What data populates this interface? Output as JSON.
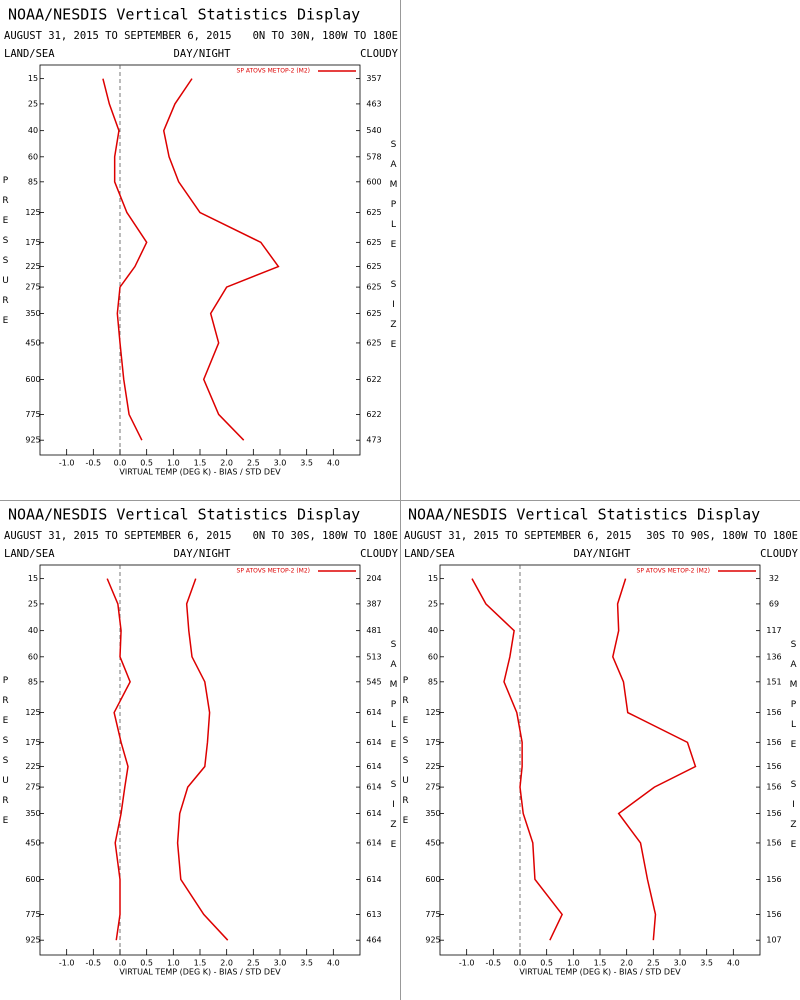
{
  "chart_data": [
    {
      "type": "line",
      "title": "NOAA/NESDIS Vertical Statistics Display",
      "subtitle": "AUGUST 31, 2015 TO SEPTEMBER 6, 2015",
      "region": "0N TO 30N, 180W TO 180E",
      "left_label": "LAND/SEA",
      "center_label": "DAY/NIGHT",
      "right_label": "CLOUDY",
      "xlabel": "VIRTUAL TEMP (DEG K) - BIAS / STD DEV",
      "ylabel": "PRESSURE",
      "y2label": "SAMPLE SIZE",
      "y": [
        15,
        25,
        40,
        60,
        85,
        125,
        175,
        225,
        275,
        350,
        450,
        600,
        775,
        925
      ],
      "sample_size": [
        357,
        463,
        540,
        578,
        600,
        625,
        625,
        625,
        625,
        625,
        625,
        622,
        622,
        473
      ],
      "series": [
        {
          "name": "SP ATOVS METOP-2 (M2)",
          "color": "#dd0000",
          "values": [
            -0.32,
            -0.2,
            -0.02,
            -0.1,
            -0.1,
            0.13,
            0.5,
            0.28,
            0.0,
            -0.05,
            0.0,
            0.07,
            0.17,
            0.41
          ]
        },
        {
          "color": "#dd0000",
          "values": [
            1.35,
            1.03,
            0.82,
            0.92,
            1.1,
            1.5,
            2.64,
            2.97,
            2.0,
            1.7,
            1.85,
            1.57,
            1.85,
            2.32
          ]
        }
      ],
      "xlim": [
        -1.5,
        4.5
      ],
      "xticks": [
        {
          "value": -1,
          "label": "-1.0"
        },
        {
          "value": -0.5,
          "label": "-0.5"
        },
        {
          "value": 0,
          "label": "0.0"
        },
        {
          "value": 0.5,
          "label": "0.5"
        },
        {
          "value": 1,
          "label": "1.0"
        },
        {
          "value": 1.5,
          "label": "1.5"
        },
        {
          "value": 2,
          "label": "2.0"
        },
        {
          "value": 2.5,
          "label": "2.5"
        },
        {
          "value": 3,
          "label": "3.0"
        },
        {
          "value": 3.5,
          "label": "3.5"
        },
        {
          "value": 4,
          "label": "4.0"
        }
      ],
      "ylim": [
        11,
        1020
      ],
      "y_power": 0.286,
      "y_inverted": true,
      "yticks": [
        15,
        25,
        40,
        60,
        85,
        125,
        175,
        225,
        275,
        350,
        450,
        600,
        775,
        925
      ]
    },
    {
      "type": "line",
      "title": "NOAA/NESDIS Vertical Statistics Display",
      "subtitle": "AUGUST 31, 2015 TO SEPTEMBER 6, 2015",
      "region": "0N TO 30S, 180W TO 180E",
      "left_label": "LAND/SEA",
      "center_label": "DAY/NIGHT",
      "right_label": "CLOUDY",
      "xlabel": "VIRTUAL TEMP (DEG K) - BIAS / STD DEV",
      "ylabel": "PRESSURE",
      "y2label": "SAMPLE SIZE",
      "y": [
        15,
        25,
        40,
        60,
        85,
        125,
        175,
        225,
        275,
        350,
        450,
        600,
        775,
        925
      ],
      "sample_size": [
        204,
        387,
        481,
        513,
        545,
        614,
        614,
        614,
        614,
        614,
        614,
        614,
        613,
        464
      ],
      "series": [
        {
          "name": "SP ATOVS METOP-2 (M2)",
          "color": "#dd0000",
          "values": [
            -0.24,
            -0.04,
            0.02,
            0.0,
            0.19,
            -0.11,
            0.02,
            0.15,
            0.09,
            0.02,
            -0.09,
            0.0,
            0.0,
            -0.07
          ]
        },
        {
          "color": "#dd0000",
          "values": [
            1.42,
            1.25,
            1.29,
            1.35,
            1.59,
            1.68,
            1.64,
            1.59,
            1.27,
            1.12,
            1.08,
            1.14,
            1.57,
            2.02
          ]
        }
      ],
      "xlim": [
        -1.5,
        4.5
      ],
      "xticks": [
        {
          "value": -1,
          "label": "-1.0"
        },
        {
          "value": -0.5,
          "label": "-0.5"
        },
        {
          "value": 0,
          "label": "0.0"
        },
        {
          "value": 0.5,
          "label": "0.5"
        },
        {
          "value": 1,
          "label": "1.0"
        },
        {
          "value": 1.5,
          "label": "1.5"
        },
        {
          "value": 2,
          "label": "2.0"
        },
        {
          "value": 2.5,
          "label": "2.5"
        },
        {
          "value": 3,
          "label": "3.0"
        },
        {
          "value": 3.5,
          "label": "3.5"
        },
        {
          "value": 4,
          "label": "4.0"
        }
      ],
      "ylim": [
        11,
        1020
      ],
      "y_power": 0.286,
      "y_inverted": true,
      "yticks": [
        15,
        25,
        40,
        60,
        85,
        125,
        175,
        225,
        275,
        350,
        450,
        600,
        775,
        925
      ]
    },
    {
      "type": "line",
      "title": "NOAA/NESDIS Vertical Statistics Display",
      "subtitle": "AUGUST 31, 2015 TO SEPTEMBER 6, 2015",
      "region": "30S TO 90S, 180W TO 180E",
      "left_label": "LAND/SEA",
      "center_label": "DAY/NIGHT",
      "right_label": "CLOUDY",
      "xlabel": "VIRTUAL TEMP (DEG K) - BIAS / STD DEV",
      "ylabel": "PRESSURE",
      "y2label": "SAMPLE SIZE",
      "y": [
        15,
        25,
        40,
        60,
        85,
        125,
        175,
        225,
        275,
        350,
        450,
        600,
        775,
        925
      ],
      "sample_size": [
        32,
        69,
        117,
        136,
        151,
        156,
        156,
        156,
        156,
        156,
        156,
        156,
        156,
        107
      ],
      "series": [
        {
          "name": "SP ATOVS METOP-2 (M2)",
          "color": "#dd0000",
          "values": [
            -0.9,
            -0.64,
            -0.11,
            -0.19,
            -0.3,
            -0.06,
            0.04,
            0.04,
            0.0,
            0.06,
            0.24,
            0.28,
            0.79,
            0.56
          ]
        },
        {
          "color": "#dd0000",
          "values": [
            1.98,
            1.83,
            1.85,
            1.74,
            1.94,
            2.02,
            3.14,
            3.29,
            2.52,
            1.85,
            2.26,
            2.39,
            2.54,
            2.5
          ]
        }
      ],
      "xlim": [
        -1.5,
        4.5
      ],
      "xticks": [
        {
          "value": -1,
          "label": "-1.0"
        },
        {
          "value": -0.5,
          "label": "-0.5"
        },
        {
          "value": 0,
          "label": "0.0"
        },
        {
          "value": 0.5,
          "label": "0.5"
        },
        {
          "value": 1,
          "label": "1.0"
        },
        {
          "value": 1.5,
          "label": "1.5"
        },
        {
          "value": 2,
          "label": "2.0"
        },
        {
          "value": 2.5,
          "label": "2.5"
        },
        {
          "value": 3,
          "label": "3.0"
        },
        {
          "value": 3.5,
          "label": "3.5"
        },
        {
          "value": 4,
          "label": "4.0"
        }
      ],
      "ylim": [
        11,
        1020
      ],
      "y_power": 0.286,
      "y_inverted": true,
      "yticks": [
        15,
        25,
        40,
        60,
        85,
        125,
        175,
        225,
        275,
        350,
        450,
        600,
        775,
        925
      ]
    }
  ]
}
